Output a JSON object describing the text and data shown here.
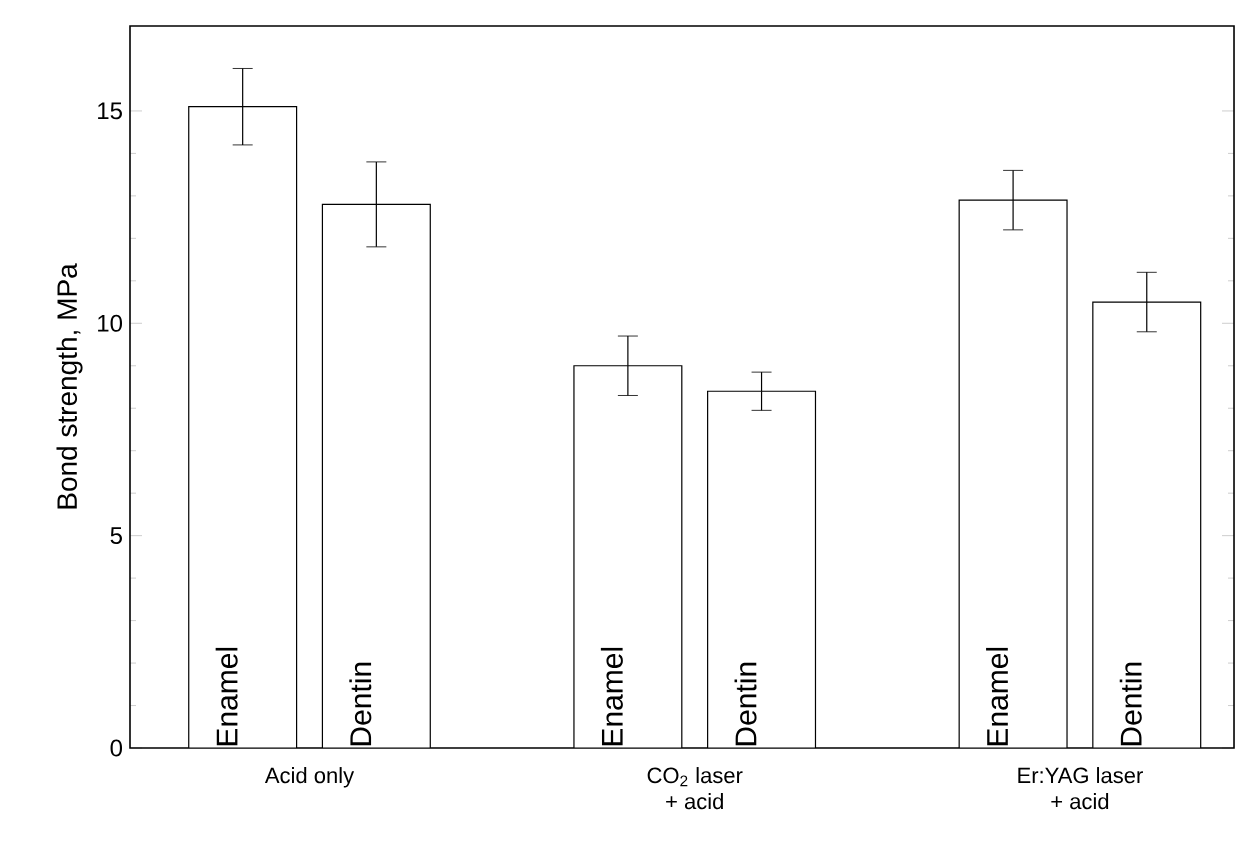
{
  "chart_data": {
    "type": "bar",
    "ylabel": "Bond strength, MPa",
    "categories": [
      "Acid only",
      "CO$_{2}$ laser\n+ acid",
      "Er:YAG laser\n+ acid"
    ],
    "series": [
      {
        "name": "Enamel",
        "color": "#ffffff",
        "values": [
          15.1,
          9.0,
          12.9
        ],
        "errors": [
          0.9,
          0.7,
          0.7
        ]
      },
      {
        "name": "Dentin",
        "color": "#ffffff",
        "values": [
          12.8,
          8.4,
          10.5
        ],
        "errors": [
          1.0,
          0.45,
          0.7
        ]
      }
    ],
    "ylim": [
      0,
      17
    ],
    "yticks": [
      0,
      5,
      10,
      15
    ]
  }
}
